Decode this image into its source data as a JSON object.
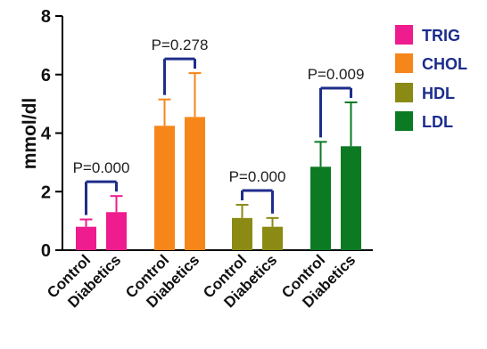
{
  "chart_data": {
    "type": "bar",
    "ylabel": "mmol/dl",
    "ylim": [
      0,
      8
    ],
    "yticks": [
      0,
      2,
      4,
      6,
      8
    ],
    "categories": [
      "Control",
      "Diabetics"
    ],
    "series": [
      {
        "name": "TRIG",
        "color": "#ee1c8e",
        "values": [
          0.8,
          1.3
        ],
        "errors": [
          0.25,
          0.55
        ],
        "p_label": "P=0.000"
      },
      {
        "name": "CHOL",
        "color": "#f7861a",
        "values": [
          4.25,
          4.55
        ],
        "errors": [
          0.9,
          1.5
        ],
        "p_label": "P=0.278"
      },
      {
        "name": "HDL",
        "color": "#8a8a14",
        "values": [
          1.1,
          0.8
        ],
        "errors": [
          0.45,
          0.3
        ],
        "p_label": "P=0.000"
      },
      {
        "name": "LDL",
        "color": "#0b7a22",
        "values": [
          2.85,
          3.55
        ],
        "errors": [
          0.85,
          1.5
        ],
        "p_label": "P=0.009"
      }
    ],
    "error_color": "#1f2d8a",
    "grid": false,
    "legend_position": "right"
  }
}
